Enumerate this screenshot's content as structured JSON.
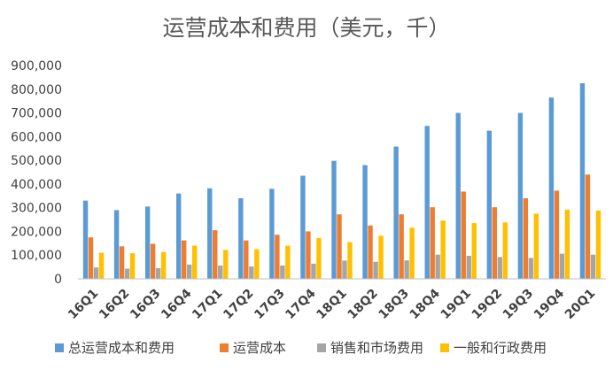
{
  "chart_data": {
    "type": "bar",
    "title": "运营成本和费用（美元，千）",
    "categories": [
      "16Q1",
      "16Q2",
      "16Q3",
      "16Q4",
      "17Q1",
      "17Q2",
      "17Q3",
      "17Q4",
      "18Q1",
      "18Q2",
      "18Q3",
      "18Q4",
      "19Q1",
      "19Q2",
      "19Q3",
      "19Q4",
      "20Q1"
    ],
    "y_ticks": [
      "0",
      "100,000",
      "200,000",
      "300,000",
      "400,000",
      "500,000",
      "600,000",
      "700,000",
      "800,000",
      "900,000"
    ],
    "ylim": [
      0,
      900000
    ],
    "grid": false,
    "legend_position": "bottom",
    "series": [
      {
        "name": "总运营成本和费用",
        "color": "#5B9BD5",
        "values": [
          330000,
          290000,
          305000,
          360000,
          382000,
          340000,
          380000,
          435000,
          498000,
          480000,
          558000,
          645000,
          700000,
          625000,
          700000,
          765000,
          825000
        ]
      },
      {
        "name": "运营成本",
        "color": "#ED7D31",
        "values": [
          175000,
          137000,
          148000,
          162000,
          205000,
          162000,
          186000,
          200000,
          272000,
          225000,
          272000,
          302000,
          368000,
          302000,
          340000,
          372000,
          440000
        ]
      },
      {
        "name": "销售和市场费用",
        "color": "#A5A5A5",
        "values": [
          48000,
          43000,
          45000,
          60000,
          56000,
          52000,
          56000,
          64000,
          77000,
          72000,
          78000,
          102000,
          97000,
          92000,
          88000,
          106000,
          102000
        ]
      },
      {
        "name": "一般和行政费用",
        "color": "#FFC000",
        "values": [
          110000,
          108000,
          113000,
          140000,
          122000,
          125000,
          140000,
          172000,
          155000,
          182000,
          216000,
          246000,
          235000,
          238000,
          275000,
          292000,
          288000
        ]
      }
    ]
  }
}
